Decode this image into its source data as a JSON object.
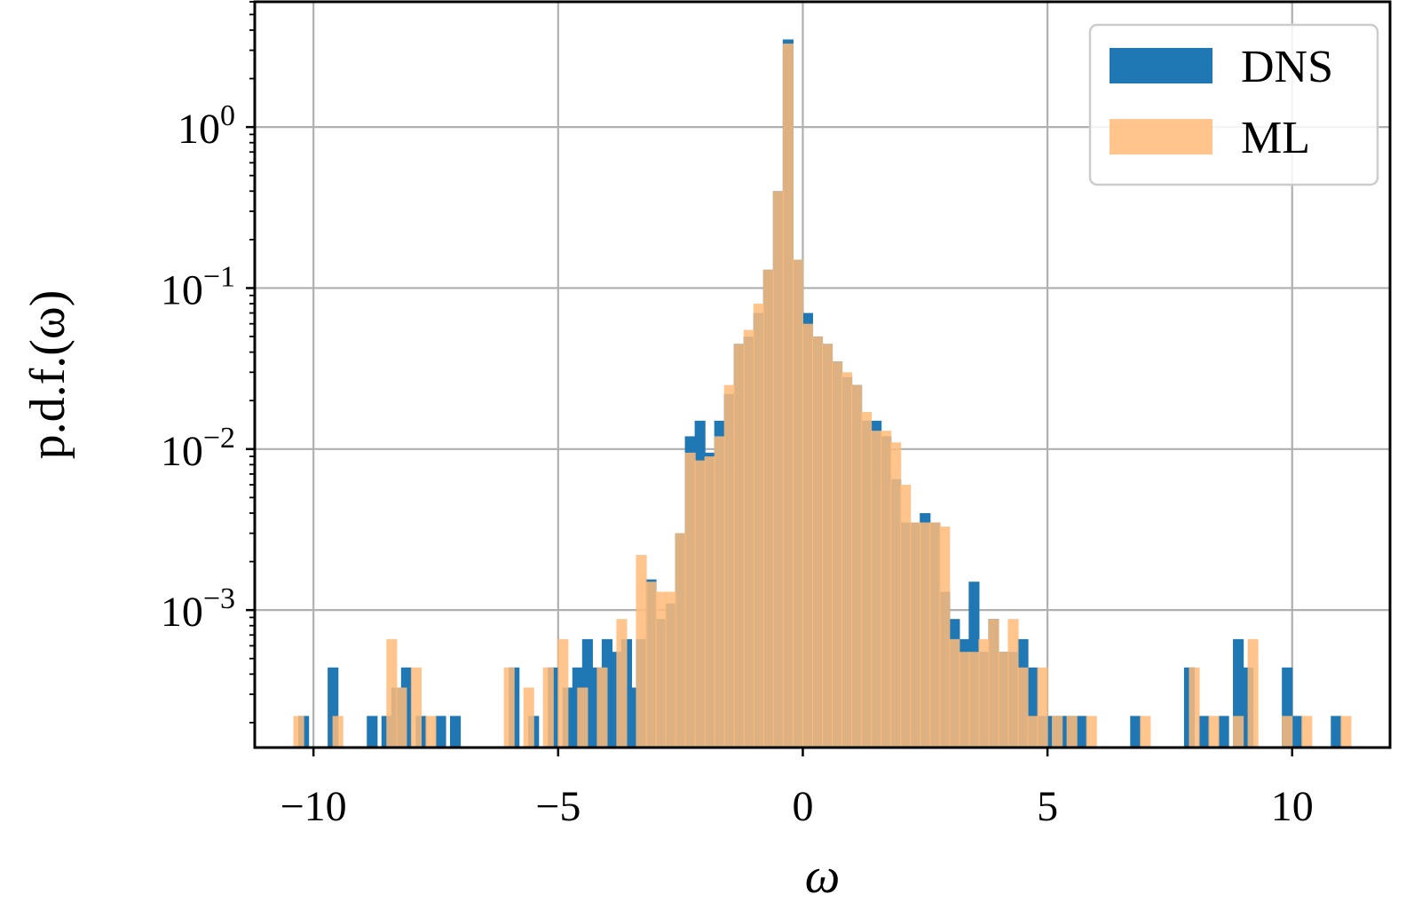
{
  "chart_data": {
    "type": "bar",
    "histogram": true,
    "xlabel": "ω",
    "ylabel": "p.d.f.(ω)",
    "xlim": [
      -11.2,
      12.0
    ],
    "ylim": [
      0.00014,
      6.0
    ],
    "yscale": "log",
    "grid": true,
    "legend_position": "top-right",
    "x_ticks": [
      {
        "value": -10,
        "label": "−10"
      },
      {
        "value": -5,
        "label": "−5"
      },
      {
        "value": 0,
        "label": "0"
      },
      {
        "value": 5,
        "label": "5"
      },
      {
        "value": 10,
        "label": "10"
      }
    ],
    "y_ticks": [
      {
        "value": 1,
        "base": "10",
        "exp": "0"
      },
      {
        "value": 0.1,
        "base": "10",
        "exp": "−1"
      },
      {
        "value": 0.01,
        "base": "10",
        "exp": "−2"
      },
      {
        "value": 0.001,
        "base": "10",
        "exp": "−3"
      }
    ],
    "series": [
      {
        "name": "DNS",
        "color": "#1f77b4",
        "opacity": 1.0,
        "bin_width": 0.22,
        "x": [
          -10.2,
          -9.6,
          -8.8,
          -8.5,
          -8.3,
          -8.1,
          -7.8,
          -7.4,
          -7.1,
          -5.9,
          -5.5,
          -5.1,
          -4.8,
          -4.6,
          -4.4,
          -4.2,
          -4.0,
          -3.8,
          -3.6,
          -3.5,
          -3.3,
          -3.1,
          -2.9,
          -2.7,
          -2.5,
          -2.3,
          -2.1,
          -1.9,
          -1.7,
          -1.5,
          -1.3,
          -1.1,
          -0.9,
          -0.7,
          -0.5,
          -0.3,
          -0.1,
          0.1,
          0.3,
          0.5,
          0.7,
          0.9,
          1.1,
          1.3,
          1.5,
          1.7,
          1.9,
          2.1,
          2.3,
          2.5,
          2.7,
          2.9,
          3.1,
          3.3,
          3.5,
          3.7,
          3.9,
          4.1,
          4.3,
          4.5,
          4.7,
          4.9,
          5.1,
          5.3,
          5.5,
          5.7,
          6.8,
          7.9,
          8.2,
          8.6,
          8.9,
          9.1,
          9.9,
          10.1,
          10.9
        ],
        "values": [
          0.00022,
          0.00044,
          0.00022,
          0.00022,
          0.00033,
          0.00044,
          0.00022,
          0.00022,
          0.00022,
          0.00044,
          0.00022,
          0.00044,
          0.00033,
          0.00044,
          0.00066,
          0.00044,
          0.00066,
          0.00055,
          0.00066,
          0.00033,
          0.00066,
          0.00155,
          0.00088,
          0.0011,
          0.003,
          0.012,
          0.015,
          0.0095,
          0.015,
          0.022,
          0.045,
          0.05,
          0.07,
          0.13,
          0.4,
          3.5,
          0.15,
          0.07,
          0.05,
          0.045,
          0.035,
          0.028,
          0.025,
          0.015,
          0.015,
          0.012,
          0.0065,
          0.0035,
          0.0035,
          0.004,
          0.0035,
          0.0013,
          0.00088,
          0.00066,
          0.0015,
          0.00055,
          0.00088,
          0.00055,
          0.00055,
          0.00066,
          0.00044,
          0.00022,
          0.00022,
          0.00022,
          0.00022,
          0.00022,
          0.00022,
          0.00044,
          0.00022,
          0.00022,
          0.00066,
          0.00044,
          0.00044,
          0.00022,
          0.00022
        ]
      },
      {
        "name": "ML",
        "color": "#ffbb78",
        "opacity": 0.85,
        "bin_width": 0.22,
        "x": [
          -10.3,
          -9.5,
          -8.4,
          -8.2,
          -7.9,
          -7.6,
          -6.0,
          -5.6,
          -5.2,
          -4.9,
          -4.5,
          -4.1,
          -3.7,
          -3.3,
          -3.1,
          -2.9,
          -2.7,
          -2.5,
          -2.3,
          -2.1,
          -1.9,
          -1.7,
          -1.5,
          -1.3,
          -1.1,
          -0.9,
          -0.7,
          -0.5,
          -0.3,
          -0.1,
          0.1,
          0.3,
          0.5,
          0.7,
          0.9,
          1.1,
          1.3,
          1.5,
          1.7,
          1.9,
          2.1,
          2.3,
          2.5,
          2.7,
          2.9,
          3.1,
          3.3,
          3.5,
          3.7,
          3.9,
          4.1,
          4.3,
          4.5,
          4.7,
          4.9,
          5.2,
          5.5,
          5.9,
          7.0,
          8.0,
          8.4,
          8.9,
          9.2,
          9.9,
          10.3,
          11.1
        ],
        "values": [
          0.00022,
          0.00022,
          0.00066,
          0.00033,
          0.00044,
          0.00022,
          0.00044,
          0.00033,
          0.00044,
          0.00066,
          0.00033,
          0.00044,
          0.00088,
          0.0022,
          0.0015,
          0.0013,
          0.0013,
          0.003,
          0.0095,
          0.0085,
          0.009,
          0.012,
          0.025,
          0.045,
          0.055,
          0.08,
          0.13,
          0.4,
          3.3,
          0.15,
          0.06,
          0.05,
          0.045,
          0.035,
          0.03,
          0.025,
          0.017,
          0.013,
          0.013,
          0.011,
          0.006,
          0.0035,
          0.0035,
          0.0035,
          0.0033,
          0.00066,
          0.00055,
          0.00055,
          0.00066,
          0.00088,
          0.00055,
          0.00088,
          0.00044,
          0.00022,
          0.00044,
          0.00022,
          0.00022,
          0.00022,
          0.00022,
          0.00044,
          0.00022,
          0.00022,
          0.00066,
          0.00022,
          0.00022,
          0.00022
        ]
      }
    ]
  }
}
